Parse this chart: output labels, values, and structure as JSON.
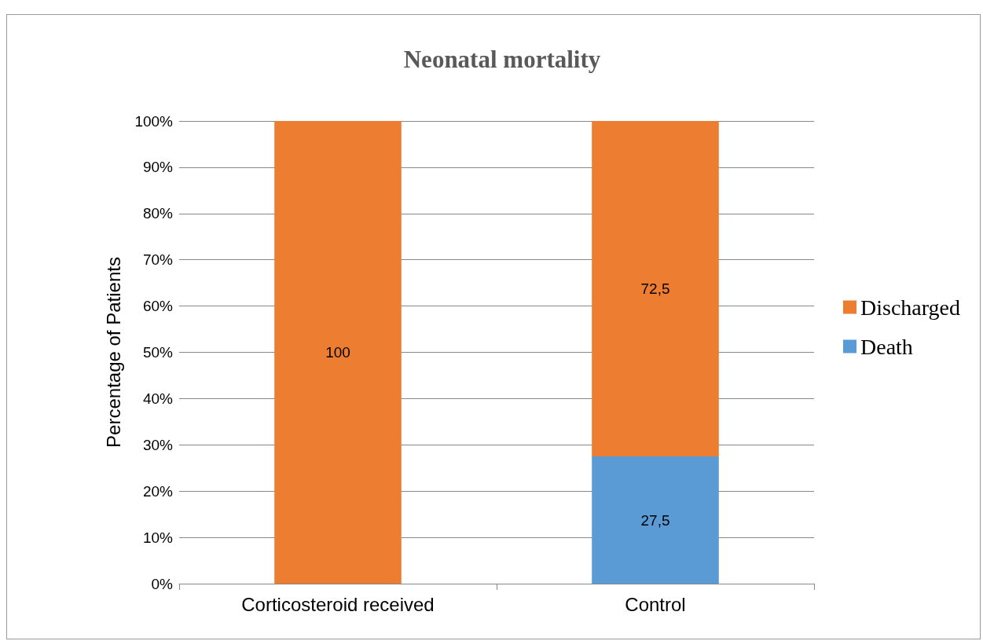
{
  "chart_data": {
    "type": "bar",
    "title": "Neonatal mortality",
    "ylabel": "Percentage of Patients",
    "categories": [
      "Corticosteroid received",
      "Control"
    ],
    "series": [
      {
        "name": "Death",
        "color": "#5b9bd5",
        "values": [
          0,
          27.5
        ],
        "value_labels": [
          null,
          "27,5"
        ]
      },
      {
        "name": "Discharged",
        "color": "#ed7d31",
        "values": [
          100,
          72.5
        ],
        "value_labels": [
          "100",
          "72,5"
        ]
      }
    ],
    "stacked": true,
    "ylim": [
      0,
      100
    ],
    "yticks": [
      {
        "value": 0,
        "label": "0%"
      },
      {
        "value": 10,
        "label": "10%"
      },
      {
        "value": 20,
        "label": "20%"
      },
      {
        "value": 30,
        "label": "30%"
      },
      {
        "value": 40,
        "label": "40%"
      },
      {
        "value": 50,
        "label": "50%"
      },
      {
        "value": 60,
        "label": "60%"
      },
      {
        "value": 70,
        "label": "70%"
      },
      {
        "value": 80,
        "label": "80%"
      },
      {
        "value": 90,
        "label": "90%"
      },
      {
        "value": 100,
        "label": "100%"
      }
    ],
    "grid": "y",
    "legend": "right"
  }
}
